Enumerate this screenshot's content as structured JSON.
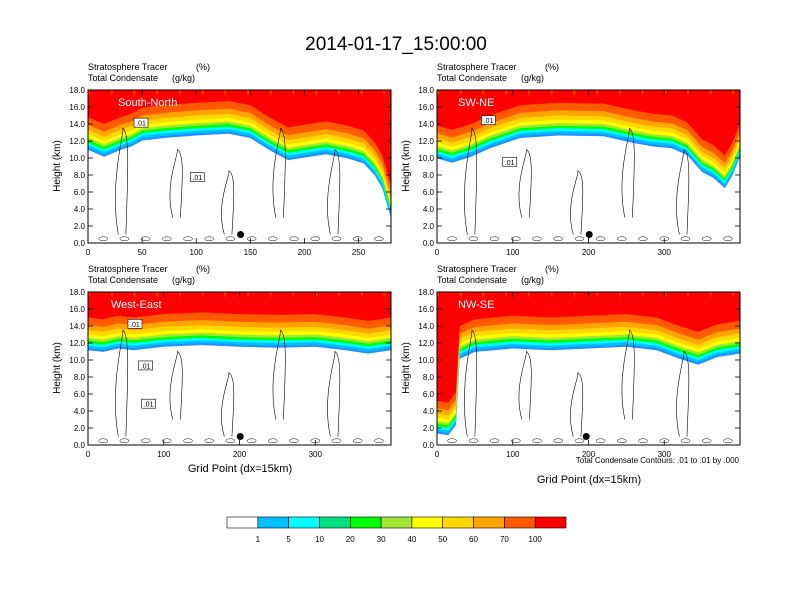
{
  "figure": {
    "title": "2014-01-17_15:00:00",
    "contour_note": "Total Condensate Contours: .01 to .01 by .000",
    "colorbar": {
      "levels": [
        "1",
        "5",
        "10",
        "20",
        "30",
        "40",
        "50",
        "60",
        "70",
        "100"
      ],
      "colors": [
        "#ffffff",
        "#1e90ff",
        "#00bfff",
        "#00ffff",
        "#00e080",
        "#00ff00",
        "#a0e632",
        "#ffff00",
        "#ffd700",
        "#ffa500",
        "#ff5a00",
        "#ff0000"
      ]
    }
  },
  "chart_data": [
    {
      "type": "contour",
      "panel_title": "South-North",
      "title_left_1": "Stratosphere Tracer",
      "unit_1": "(%)",
      "title_left_2": "Total Condensate",
      "unit_2": "(g/kg)",
      "ylabel": "Height (km)",
      "xlabel": "",
      "xlim": [
        0,
        280
      ],
      "ylim": [
        0,
        18
      ],
      "xticks": [
        "0",
        "50",
        "100",
        "150",
        "200",
        "250"
      ],
      "xtick_values": [
        0,
        50,
        100,
        150,
        200,
        250
      ],
      "yticks": [
        "0.0",
        "2.0",
        "4.0",
        "6.0",
        "8.0",
        "10.0",
        "12.0",
        "14.0",
        "16.0",
        "18.0"
      ],
      "contour_labels": [
        {
          "text": ".01",
          "x": 49,
          "y": 14.1
        },
        {
          "text": ".01",
          "x": 101,
          "y": 7.7
        }
      ],
      "marker_x": 141,
      "marker_y": 1.0,
      "top_profile": [
        {
          "x": 0,
          "y": 14.8
        },
        {
          "x": 15,
          "y": 14.0
        },
        {
          "x": 30,
          "y": 14.8
        },
        {
          "x": 40,
          "y": 15.2
        },
        {
          "x": 50,
          "y": 15.9
        },
        {
          "x": 70,
          "y": 16.2
        },
        {
          "x": 100,
          "y": 16.5
        },
        {
          "x": 130,
          "y": 16.7
        },
        {
          "x": 150,
          "y": 16.2
        },
        {
          "x": 170,
          "y": 14.6
        },
        {
          "x": 185,
          "y": 13.6
        },
        {
          "x": 200,
          "y": 13.9
        },
        {
          "x": 220,
          "y": 14.3
        },
        {
          "x": 240,
          "y": 13.8
        },
        {
          "x": 255,
          "y": 13.2
        },
        {
          "x": 265,
          "y": 11.8
        },
        {
          "x": 272,
          "y": 10.3
        },
        {
          "x": 280,
          "y": 6.8
        }
      ]
    },
    {
      "type": "contour",
      "panel_title": "SW-NE",
      "title_left_1": "Stratosphere Tracer",
      "unit_1": "(%)",
      "title_left_2": "Total Condensate",
      "unit_2": "(g/kg)",
      "ylabel": "Height (km)",
      "xlabel": "",
      "xlim": [
        0,
        400
      ],
      "ylim": [
        0,
        18
      ],
      "xticks": [
        "0",
        "100",
        "200",
        "300"
      ],
      "xtick_values": [
        0,
        100,
        200,
        300
      ],
      "yticks": [
        "0.0",
        "2.0",
        "4.0",
        "6.0",
        "8.0",
        "10.0",
        "12.0",
        "14.0",
        "16.0",
        "18.0"
      ],
      "contour_labels": [
        {
          "text": ".01",
          "x": 68,
          "y": 14.4
        },
        {
          "text": ".01",
          "x": 96,
          "y": 9.5
        }
      ],
      "marker_x": 201,
      "marker_y": 1.0,
      "top_profile": [
        {
          "x": 0,
          "y": 13.8
        },
        {
          "x": 20,
          "y": 13.3
        },
        {
          "x": 45,
          "y": 14.0
        },
        {
          "x": 70,
          "y": 15.0
        },
        {
          "x": 110,
          "y": 16.2
        },
        {
          "x": 160,
          "y": 16.5
        },
        {
          "x": 220,
          "y": 16.4
        },
        {
          "x": 260,
          "y": 15.6
        },
        {
          "x": 285,
          "y": 15.2
        },
        {
          "x": 310,
          "y": 15.0
        },
        {
          "x": 330,
          "y": 14.2
        },
        {
          "x": 350,
          "y": 12.2
        },
        {
          "x": 365,
          "y": 11.5
        },
        {
          "x": 380,
          "y": 10.3
        },
        {
          "x": 390,
          "y": 11.8
        },
        {
          "x": 400,
          "y": 14.0
        }
      ]
    },
    {
      "type": "contour",
      "panel_title": "West-East",
      "title_left_1": "Stratosphere Tracer",
      "unit_1": "(%)",
      "title_left_2": "Total Condensate",
      "unit_2": "(g/kg)",
      "ylabel": "Height (km)",
      "xlabel": "Grid Point (dx=15km)",
      "xlim": [
        0,
        400
      ],
      "ylim": [
        0,
        18
      ],
      "xticks": [
        "0",
        "100",
        "200",
        "300"
      ],
      "xtick_values": [
        0,
        100,
        200,
        300
      ],
      "yticks": [
        "0.0",
        "2.0",
        "4.0",
        "6.0",
        "8.0",
        "10.0",
        "12.0",
        "14.0",
        "16.0",
        "18.0"
      ],
      "contour_labels": [
        {
          "text": ".01",
          "x": 62,
          "y": 14.2
        },
        {
          "text": ".01",
          "x": 76,
          "y": 9.3
        },
        {
          "text": ".01",
          "x": 80,
          "y": 4.8
        }
      ],
      "marker_x": 201,
      "marker_y": 1.0,
      "top_profile": [
        {
          "x": 0,
          "y": 15.0
        },
        {
          "x": 20,
          "y": 14.8
        },
        {
          "x": 40,
          "y": 15.2
        },
        {
          "x": 60,
          "y": 15.0
        },
        {
          "x": 100,
          "y": 15.4
        },
        {
          "x": 150,
          "y": 15.6
        },
        {
          "x": 200,
          "y": 15.4
        },
        {
          "x": 250,
          "y": 15.3
        },
        {
          "x": 300,
          "y": 15.4
        },
        {
          "x": 340,
          "y": 15.0
        },
        {
          "x": 370,
          "y": 14.6
        },
        {
          "x": 400,
          "y": 15.0
        }
      ]
    },
    {
      "type": "contour",
      "panel_title": "NW-SE",
      "title_left_1": "Stratosphere Tracer",
      "unit_1": "(%)",
      "title_left_2": "Total Condensate",
      "unit_2": "(g/kg)",
      "ylabel": "Height (km)",
      "xlabel": "Grid Point (dx=15km)",
      "xlim": [
        0,
        400
      ],
      "ylim": [
        0,
        18
      ],
      "xticks": [
        "0",
        "100",
        "200",
        "300"
      ],
      "xtick_values": [
        0,
        100,
        200,
        300
      ],
      "yticks": [
        "0.0",
        "2.0",
        "4.0",
        "6.0",
        "8.0",
        "10.0",
        "12.0",
        "14.0",
        "16.0",
        "18.0"
      ],
      "contour_labels": [],
      "marker_x": 197,
      "marker_y": 1.0,
      "top_profile": [
        {
          "x": 0,
          "y": 5.2
        },
        {
          "x": 15,
          "y": 5.0
        },
        {
          "x": 25,
          "y": 6.2
        },
        {
          "x": 30,
          "y": 14.0
        },
        {
          "x": 50,
          "y": 14.8
        },
        {
          "x": 100,
          "y": 15.2
        },
        {
          "x": 150,
          "y": 15.0
        },
        {
          "x": 200,
          "y": 15.2
        },
        {
          "x": 250,
          "y": 15.4
        },
        {
          "x": 290,
          "y": 15.0
        },
        {
          "x": 320,
          "y": 14.0
        },
        {
          "x": 345,
          "y": 13.3
        },
        {
          "x": 370,
          "y": 14.2
        },
        {
          "x": 400,
          "y": 14.6
        }
      ]
    }
  ]
}
